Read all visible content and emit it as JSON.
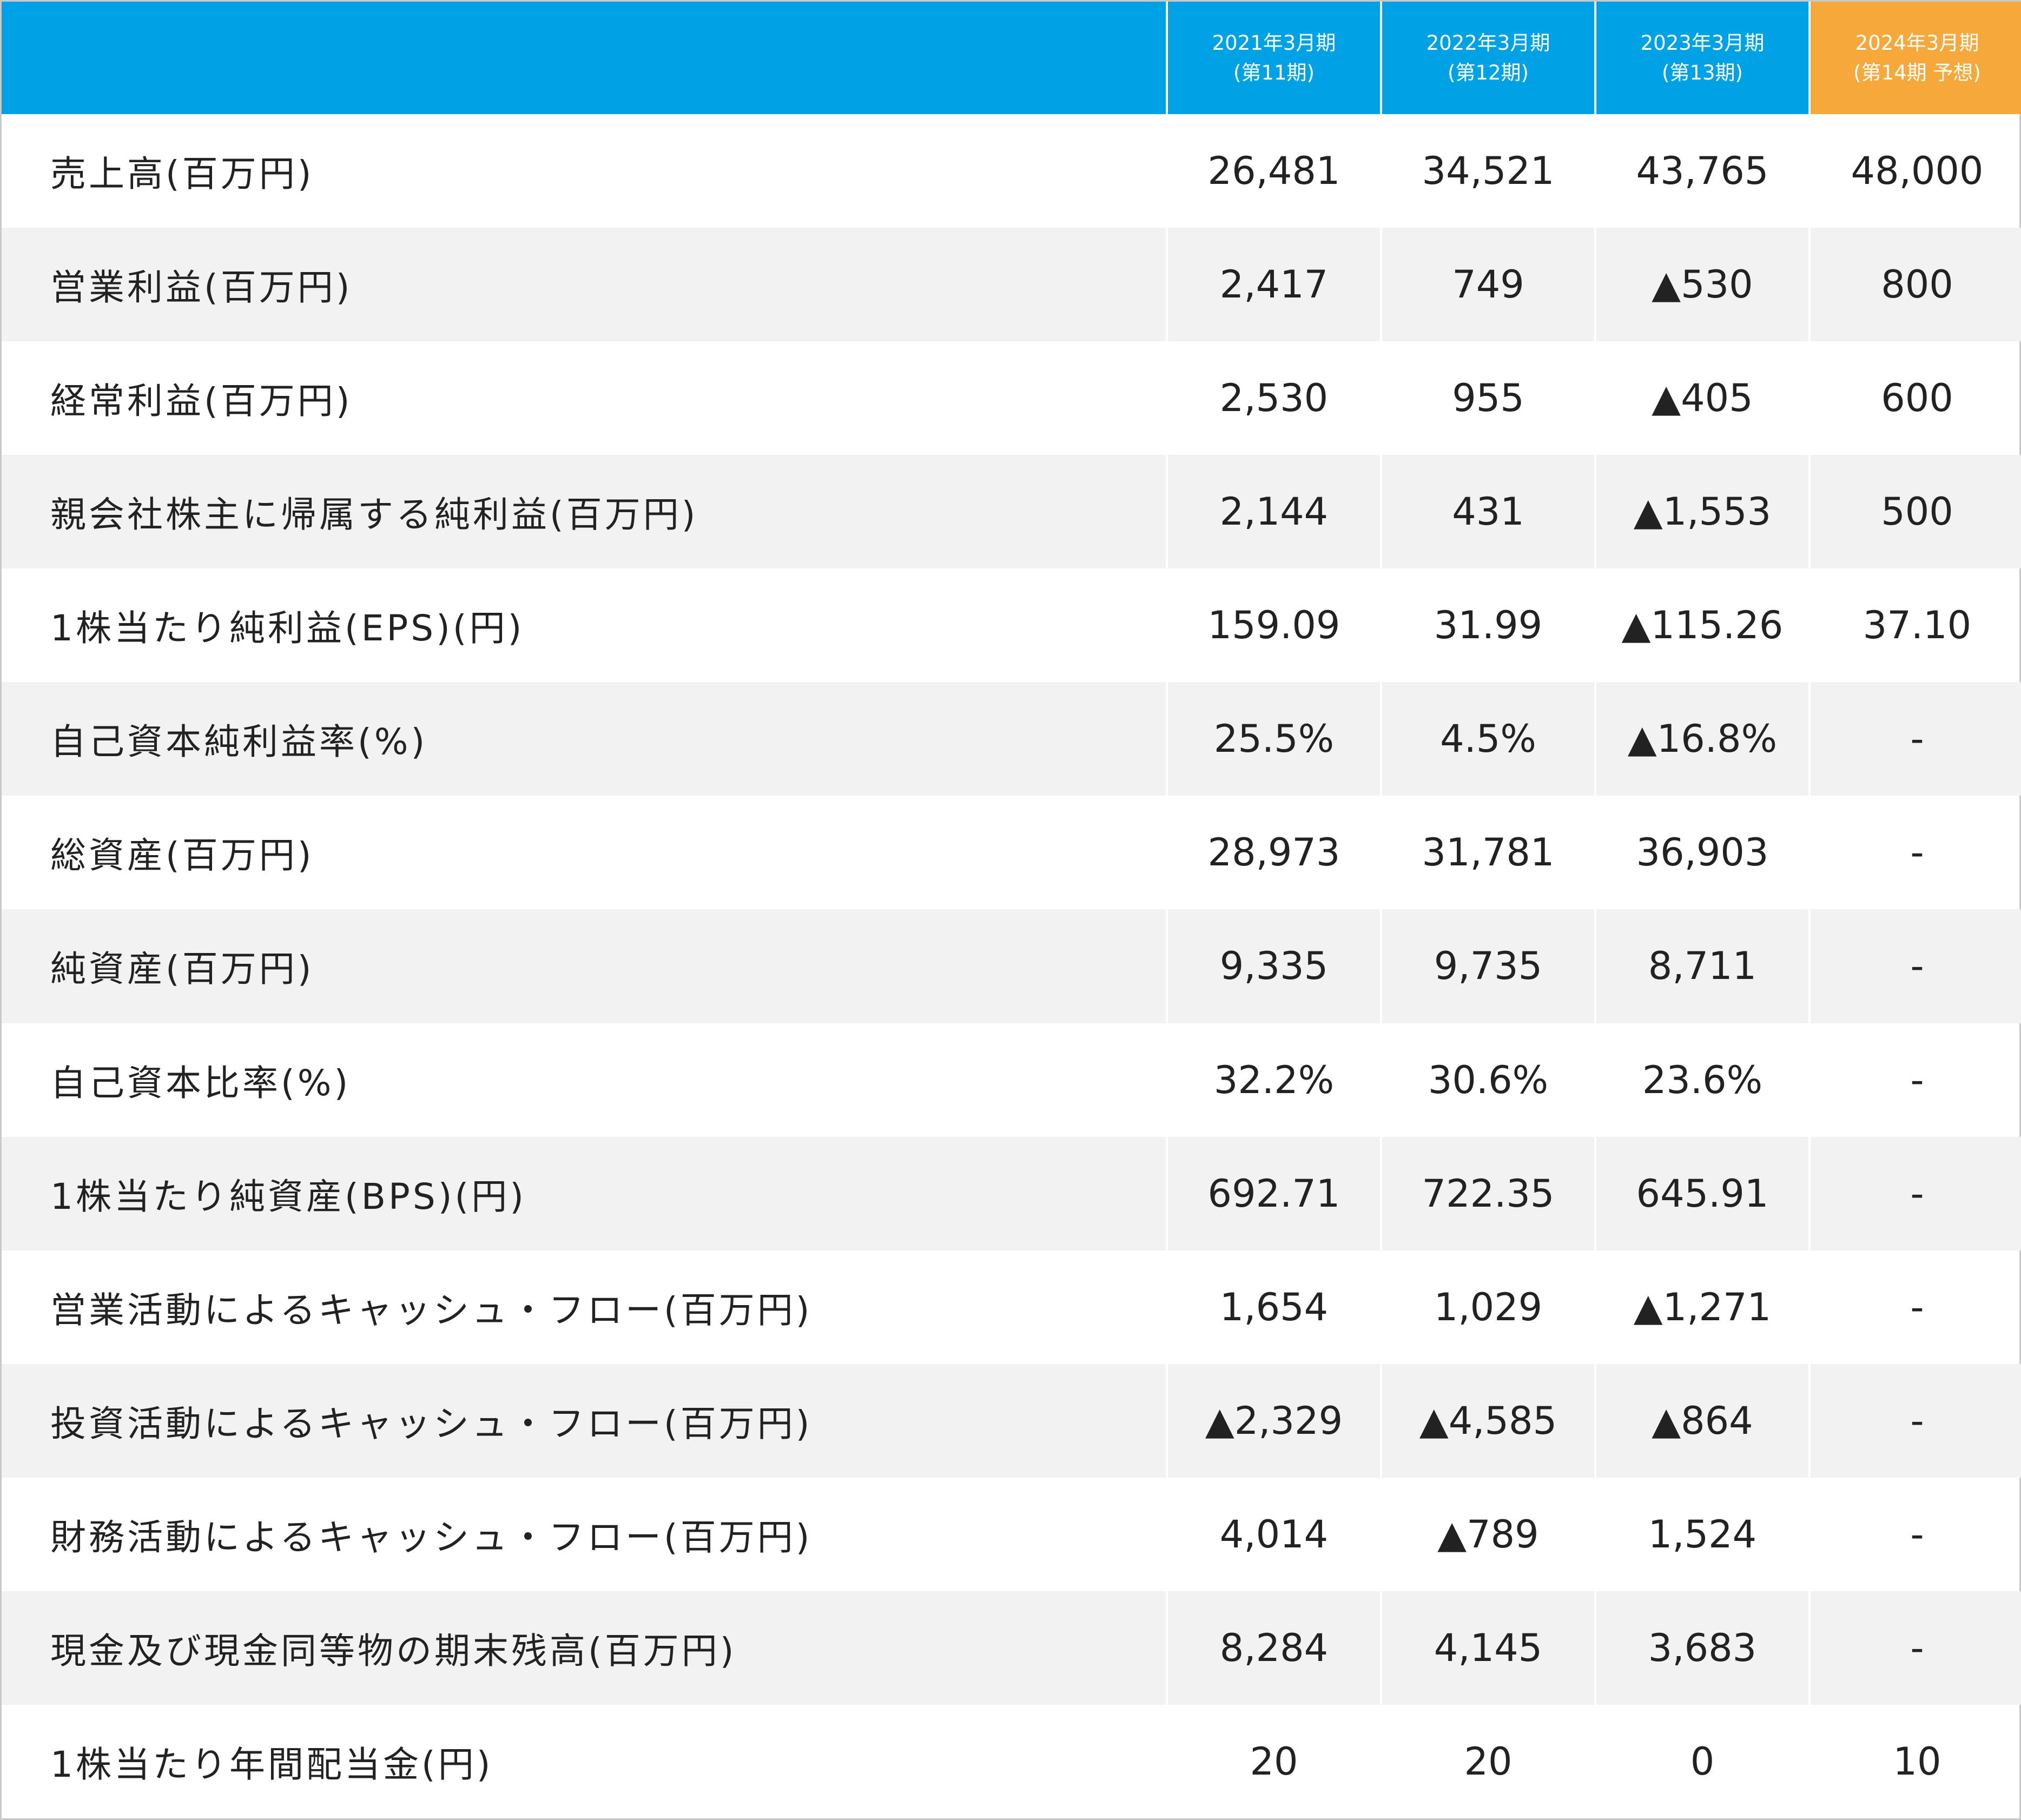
{
  "header": {
    "columns": [
      {
        "line1": "2021年3月期",
        "line2": "(第11期)"
      },
      {
        "line1": "2022年3月期",
        "line2": "(第12期)"
      },
      {
        "line1": "2023年3月期",
        "line2": "(第13期)"
      },
      {
        "line1": "2024年3月期",
        "line2": "(第14期 予想)"
      }
    ]
  },
  "colors": {
    "header_blue": "#00a2e6",
    "header_orange": "#f7a83a",
    "row_stripe": "#f2f2f2"
  },
  "rows": [
    {
      "label": "売上高(百万円)",
      "values": [
        "26,481",
        "34,521",
        "43,765",
        "48,000"
      ]
    },
    {
      "label": "営業利益(百万円)",
      "values": [
        "2,417",
        "749",
        "▲530",
        "800"
      ]
    },
    {
      "label": "経常利益(百万円)",
      "values": [
        "2,530",
        "955",
        "▲405",
        "600"
      ]
    },
    {
      "label": "親会社株主に帰属する純利益(百万円)",
      "values": [
        "2,144",
        "431",
        "▲1,553",
        "500"
      ]
    },
    {
      "label": "1株当たり純利益(EPS)(円)",
      "values": [
        "159.09",
        "31.99",
        "▲115.26",
        "37.10"
      ]
    },
    {
      "label": "自己資本純利益率(%)",
      "values": [
        "25.5%",
        "4.5%",
        "▲16.8%",
        "-"
      ]
    },
    {
      "label": "総資産(百万円)",
      "values": [
        "28,973",
        "31,781",
        "36,903",
        "-"
      ]
    },
    {
      "label": "純資産(百万円)",
      "values": [
        "9,335",
        "9,735",
        "8,711",
        "-"
      ]
    },
    {
      "label": "自己資本比率(%)",
      "values": [
        "32.2%",
        "30.6%",
        "23.6%",
        "-"
      ]
    },
    {
      "label": "1株当たり純資産(BPS)(円)",
      "values": [
        "692.71",
        "722.35",
        "645.91",
        "-"
      ]
    },
    {
      "label": "営業活動によるキャッシュ・フロー(百万円)",
      "values": [
        "1,654",
        "1,029",
        "▲1,271",
        "-"
      ]
    },
    {
      "label": "投資活動によるキャッシュ・フロー(百万円)",
      "values": [
        "▲2,329",
        "▲4,585",
        "▲864",
        "-"
      ]
    },
    {
      "label": "財務活動によるキャッシュ・フロー(百万円)",
      "values": [
        "4,014",
        "▲789",
        "1,524",
        "-"
      ]
    },
    {
      "label": "現金及び現金同等物の期末残高(百万円)",
      "values": [
        "8,284",
        "4,145",
        "3,683",
        "-"
      ]
    },
    {
      "label": "1株当たり年間配当金(円)",
      "values": [
        "20",
        "20",
        "0",
        "10"
      ]
    }
  ]
}
